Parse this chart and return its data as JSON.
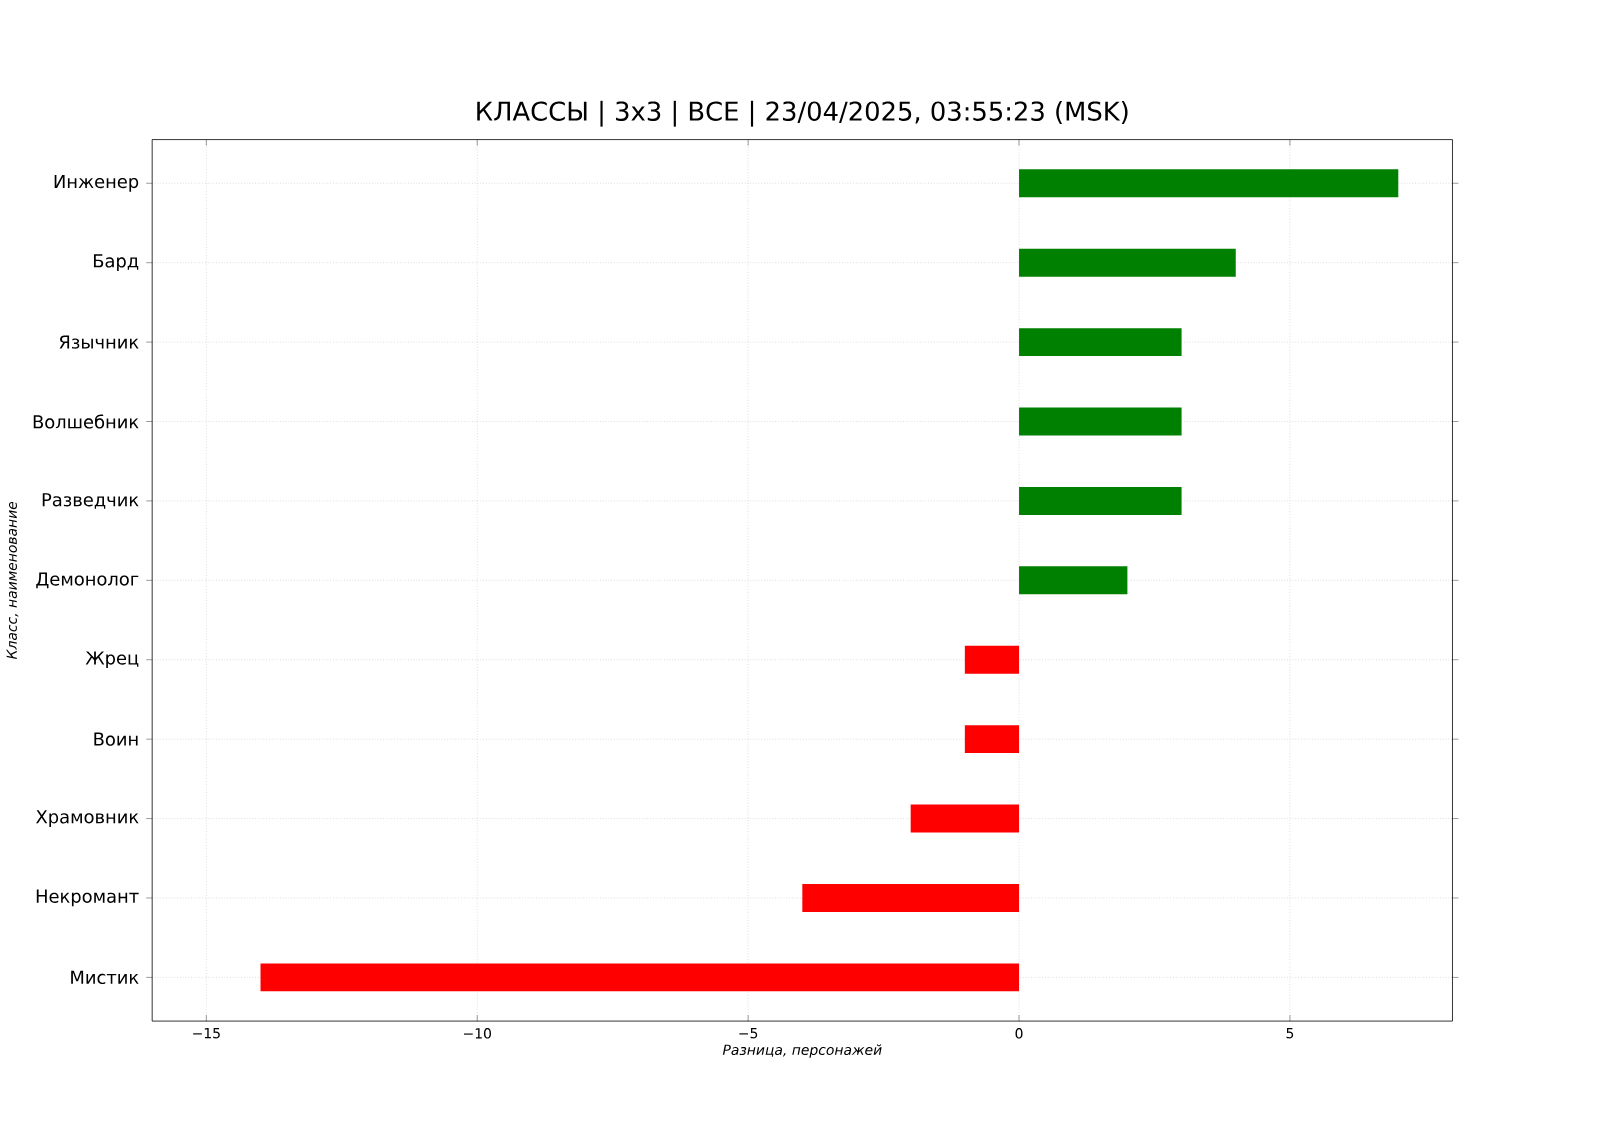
{
  "chart_data": {
    "type": "bar",
    "orientation": "horizontal",
    "title": "КЛАССЫ | 3x3 | ВСЕ | 23/04/2025, 03:55:23 (MSK)",
    "xlabel": "Разница, персонажей",
    "ylabel": "Класс, наименование",
    "categories": [
      "Инженер",
      "Бард",
      "Язычник",
      "Волшебник",
      "Разведчик",
      "Демонолог",
      "Жрец",
      "Воин",
      "Храмовник",
      "Некромант",
      "Мистик"
    ],
    "values": [
      7,
      4,
      3,
      3,
      3,
      2,
      -1,
      -1,
      -2,
      -4,
      -14
    ],
    "colors": [
      "#008000",
      "#008000",
      "#008000",
      "#008000",
      "#008000",
      "#008000",
      "#ff0000",
      "#ff0000",
      "#ff0000",
      "#ff0000",
      "#ff0000"
    ],
    "xlim": [
      -16,
      8
    ],
    "xticks": [
      {
        "value": -15,
        "label": "−15"
      },
      {
        "value": -10,
        "label": "−10"
      },
      {
        "value": -5,
        "label": "−5"
      },
      0,
      5
    ],
    "grid": true
  }
}
